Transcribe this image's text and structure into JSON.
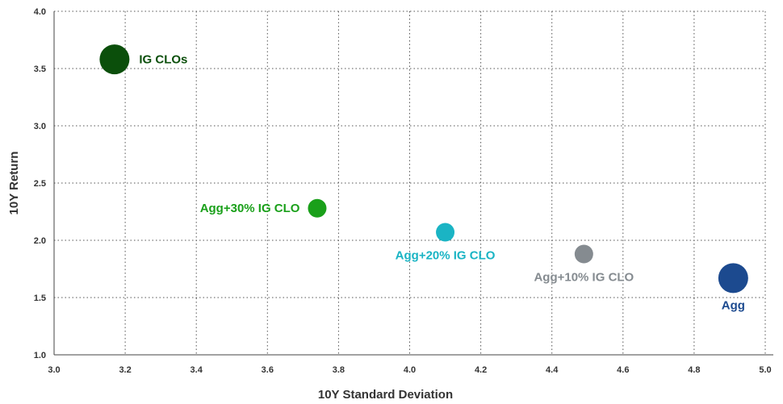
{
  "chart_data": {
    "type": "scatter",
    "xlabel": "10Y Standard Deviation",
    "ylabel": "10Y Return",
    "xlim": [
      3.0,
      5.0
    ],
    "ylim": [
      1.0,
      4.0
    ],
    "x_ticks": [
      "3.0",
      "3.2",
      "3.4",
      "3.6",
      "3.8",
      "4.0",
      "4.2",
      "4.4",
      "4.6",
      "4.8",
      "5.0"
    ],
    "y_ticks": [
      "1.0",
      "1.5",
      "2.0",
      "2.5",
      "3.0",
      "3.5",
      "4.0"
    ],
    "grid": true,
    "points": [
      {
        "label": "IG CLOs",
        "x": 3.17,
        "y": 3.58,
        "color": "#0b4f0b",
        "size": "large",
        "label_position": "right"
      },
      {
        "label": "Agg+30% IG CLO",
        "x": 3.74,
        "y": 2.28,
        "color": "#1aa01a",
        "size": "small",
        "label_position": "left"
      },
      {
        "label": "Agg+20% IG CLO",
        "x": 4.1,
        "y": 2.07,
        "color": "#1ab4c4",
        "size": "small",
        "label_position": "below"
      },
      {
        "label": "Agg+10% IG CLO",
        "x": 4.49,
        "y": 1.88,
        "color": "#858b90",
        "size": "small",
        "label_position": "below"
      },
      {
        "label": "Agg",
        "x": 4.91,
        "y": 1.67,
        "color": "#1c4a8f",
        "size": "large",
        "label_position": "below"
      }
    ]
  }
}
